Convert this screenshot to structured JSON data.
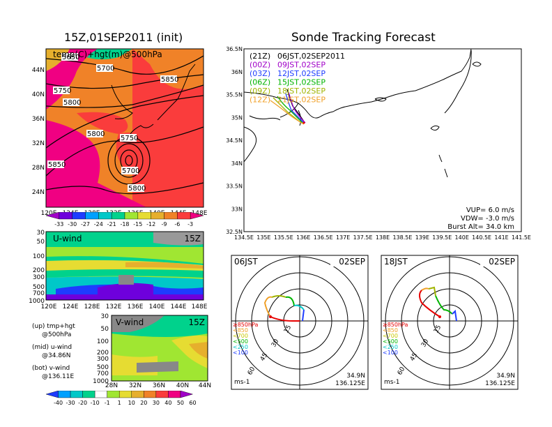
{
  "left_title": "15Z,01SEP2011 (init)",
  "main_title": "Sonde Tracking Forecast",
  "map500": {
    "label": "temp(C)+hgt(m)@500hPa",
    "lat_ticks": [
      "44N",
      "40N",
      "36N",
      "32N",
      "28N",
      "24N"
    ],
    "lon_ticks": [
      "120E",
      "124E",
      "128E",
      "132E",
      "136E",
      "140E",
      "144E",
      "148E"
    ],
    "contour_labels": [
      "5650",
      "5700",
      "5850",
      "5750",
      "5800",
      "5800",
      "5750",
      "5850",
      "5700",
      "5800"
    ],
    "colorbar": {
      "labels": [
        "-33",
        "-30",
        "-27",
        "-24",
        "-21",
        "-18",
        "-15",
        "-12",
        "-9",
        "-6",
        "-3"
      ],
      "colors": [
        "#a000c8",
        "#6e00dc",
        "#1e3cff",
        "#00a0ff",
        "#00c8c8",
        "#00d28c",
        "#a0e632",
        "#e6dc32",
        "#e6af2d",
        "#f08228",
        "#fa3c3c",
        "#f00082"
      ]
    }
  },
  "uwind": {
    "label": "U-wind",
    "time": "15Z",
    "p_ticks": [
      "30",
      "50",
      "100",
      "200",
      "300",
      "500",
      "700",
      "1000"
    ],
    "lon_ticks": [
      "120E",
      "124E",
      "128E",
      "132E",
      "136E",
      "140E",
      "144E",
      "148E"
    ]
  },
  "vwind": {
    "label": "V-wind",
    "time": "15Z",
    "p_ticks": [
      "30",
      "50",
      "100",
      "200",
      "300",
      "500",
      "700",
      "1000"
    ],
    "lat_ticks": [
      "28N",
      "32N",
      "36N",
      "40N",
      "44N"
    ]
  },
  "wind_colorbar": {
    "labels": [
      "-40",
      "-30",
      "-20",
      "-10",
      "-1",
      "1",
      "10",
      "20",
      "30",
      "40",
      "50",
      "60"
    ],
    "colors": [
      "#1e3cff",
      "#00a0ff",
      "#00c8c8",
      "#00d28c",
      "#ffffff",
      "#a0e632",
      "#e6dc32",
      "#e6af2d",
      "#f08228",
      "#fa3c3c",
      "#f00082",
      "#a000c8"
    ]
  },
  "legend_notes": [
    {
      "line1": "(up) tmp+hgt",
      "line2": "@500hPa"
    },
    {
      "line1": "(mid) u-wind",
      "line2": "@34.86N"
    },
    {
      "line1": "(bot) v-wind",
      "line2": "@136.11E"
    }
  ],
  "tracking": {
    "lat_ticks": [
      "36.5N",
      "36N",
      "35.5N",
      "35N",
      "34.5N",
      "34N",
      "33.5N",
      "33N",
      "32.5N"
    ],
    "lon_ticks": [
      "134.5E",
      "135E",
      "135.5E",
      "136E",
      "136.5E",
      "137E",
      "137.5E",
      "138E",
      "138.5E",
      "139E",
      "139.5E",
      "140E",
      "140.5E",
      "141E",
      "141.5E"
    ],
    "runs": [
      {
        "code": "(21Z)",
        "label": "06JST,02SEP2011",
        "color": "#000000"
      },
      {
        "code": "(00Z)",
        "label": "09JST,02SEP",
        "color": "#a000c8"
      },
      {
        "code": "(03Z)",
        "label": "12JST,02SEP",
        "color": "#1e3cff"
      },
      {
        "code": "(06Z)",
        "label": "15JST,02SEP",
        "color": "#00b400"
      },
      {
        "code": "(09Z)",
        "label": "18JST,02SEP",
        "color": "#a0b400"
      },
      {
        "code": "(12Z)",
        "label": "21JST,02SEP",
        "color": "#f0a028"
      }
    ],
    "vup": "VUP= 6.0 m/s",
    "vdw": "VDW= -3.0 m/s",
    "burst": "Burst Alt= 34.0 km"
  },
  "polar_left": {
    "time": "06JST",
    "date": "02SEP",
    "ring_labels": [
      "15",
      "30",
      "45",
      "60"
    ],
    "unit": "ms-1",
    "lat": "34.9N",
    "lon": "136.125E",
    "legend": [
      {
        "text": "≥850hPa",
        "color": "#e60000"
      },
      {
        "text": "<850",
        "color": "#f0a028"
      },
      {
        "text": "<700",
        "color": "#c8c800"
      },
      {
        "text": "<500",
        "color": "#00b400"
      },
      {
        "text": "<250",
        "color": "#00c8c8"
      },
      {
        "text": "<100",
        "color": "#1e3cff"
      }
    ]
  },
  "polar_right": {
    "time": "18JST",
    "date": "02SEP",
    "ring_labels": [
      "15",
      "30",
      "45",
      "60"
    ],
    "unit": "ms-1",
    "lat": "34.9N",
    "lon": "136.125E",
    "legend": [
      {
        "text": "≥850hPa",
        "color": "#e60000"
      },
      {
        "text": "<850",
        "color": "#f0a028"
      },
      {
        "text": "<700",
        "color": "#c8c800"
      },
      {
        "text": "<500",
        "color": "#00b400"
      },
      {
        "text": "<250",
        "color": "#00c8c8"
      },
      {
        "text": "<100",
        "color": "#1e3cff"
      }
    ]
  }
}
